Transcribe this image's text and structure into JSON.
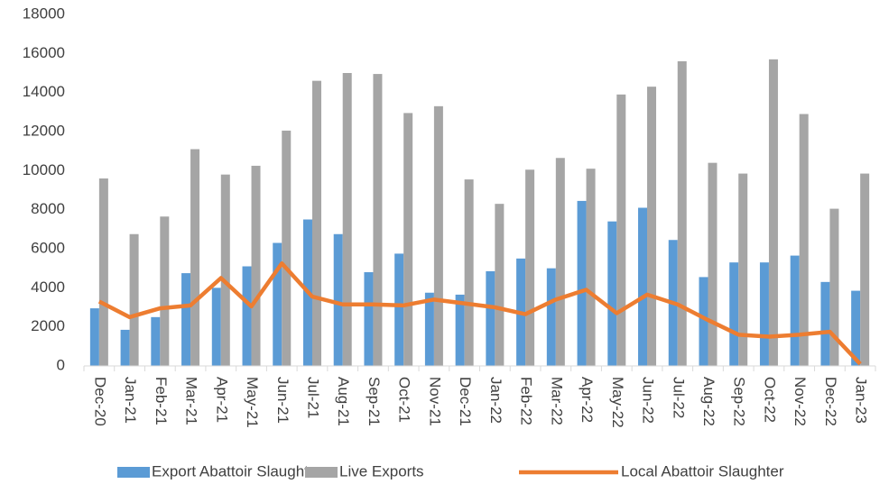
{
  "chart_data": {
    "type": "bar_line",
    "categories": [
      "Dec-20",
      "Jan-21",
      "Feb-21",
      "Mar-21",
      "Apr-21",
      "May-21",
      "Jun-21",
      "Jul-21",
      "Aug-21",
      "Sep-21",
      "Oct-21",
      "Nov-21",
      "Dec-21",
      "Jan-22",
      "Feb-22",
      "Mar-22",
      "Apr-22",
      "May-22",
      "Jun-22",
      "Jul-22",
      "Aug-22",
      "Sep-22",
      "Oct-22",
      "Nov-22",
      "Dec-22",
      "Jan-23"
    ],
    "series": [
      {
        "name": "Export Abattoir Slaughter",
        "type": "bar",
        "color": "#5b9bd5",
        "values": [
          2950,
          1850,
          2500,
          4750,
          4000,
          5100,
          6300,
          7500,
          6750,
          4800,
          5750,
          3750,
          3650,
          4850,
          5500,
          5000,
          8450,
          7400,
          8100,
          6450,
          4550,
          5300,
          5300,
          5650,
          4300,
          3850
        ]
      },
      {
        "name": "Live Exports",
        "type": "bar",
        "color": "#a5a5a5",
        "values": [
          9600,
          6750,
          7650,
          11100,
          9800,
          10250,
          12050,
          14600,
          15000,
          14950,
          12950,
          13300,
          9550,
          8300,
          10050,
          10650,
          10100,
          13900,
          14300,
          15600,
          10400,
          9850,
          15700,
          12900,
          8050,
          9850
        ]
      },
      {
        "name": "Local Abattoir Slaughter",
        "type": "line",
        "color": "#ed7d31",
        "values": [
          3300,
          2500,
          2950,
          3100,
          4500,
          3050,
          5250,
          3550,
          3150,
          3150,
          3100,
          3400,
          3200,
          3000,
          2650,
          3400,
          3900,
          2700,
          3650,
          3150,
          2350,
          1600,
          1500,
          1600,
          1750,
          100
        ]
      }
    ],
    "ylim": [
      0,
      18000
    ],
    "yticks": [
      0,
      2000,
      4000,
      6000,
      8000,
      10000,
      12000,
      14000,
      16000,
      18000
    ],
    "grid": false,
    "legend": "bottom"
  }
}
